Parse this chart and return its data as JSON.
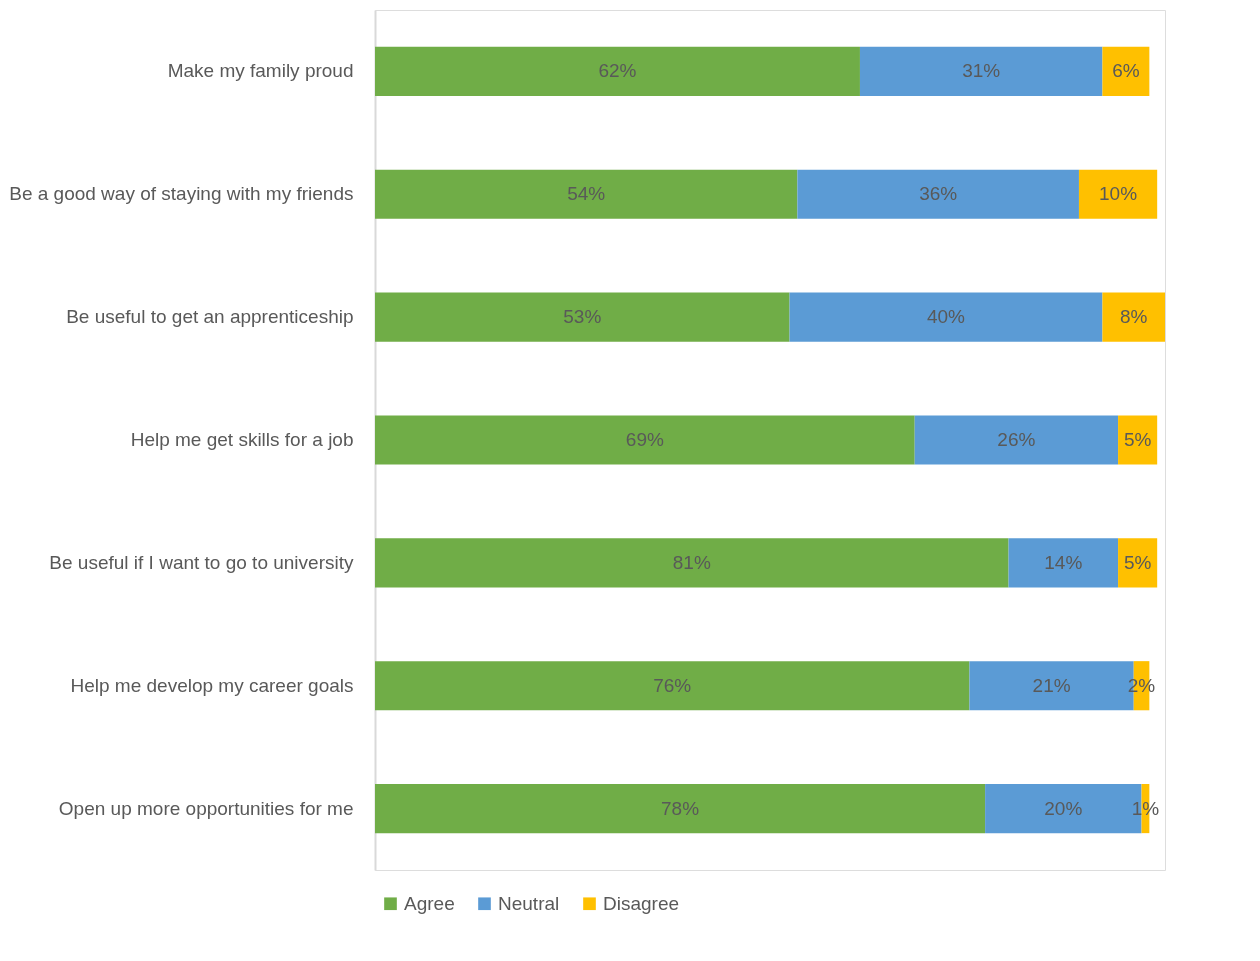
{
  "chart_data": {
    "type": "bar",
    "orientation": "horizontal",
    "stacked": true,
    "legend": "bottom",
    "grid": false,
    "categories": [
      "Make my family proud",
      "Be a good way of staying with my friends",
      "Be useful to get an apprenticeship",
      "Help me get skills for a job",
      "Be useful if I want to go to university",
      "Help me develop my career goals",
      "Open up more opportunities for me"
    ],
    "series": [
      {
        "name": "Agree",
        "color": "#70ad47",
        "values": [
          62,
          54,
          53,
          69,
          81,
          76,
          78
        ],
        "value_labels": [
          "62%",
          "54%",
          "53%",
          "69%",
          "81%",
          "76%",
          "78%"
        ]
      },
      {
        "name": "Neutral",
        "color": "#5b9bd5",
        "values": [
          31,
          36,
          40,
          26,
          14,
          21,
          20
        ],
        "value_labels": [
          "31%",
          "36%",
          "40%",
          "26%",
          "14%",
          "21%",
          "20%"
        ]
      },
      {
        "name": "Disagree",
        "color": "#ffc000",
        "values": [
          6,
          10,
          8,
          5,
          5,
          2,
          1
        ],
        "value_labels": [
          "6%",
          "10%",
          "8%",
          "5%",
          "5%",
          "2%",
          "1%"
        ]
      }
    ]
  }
}
